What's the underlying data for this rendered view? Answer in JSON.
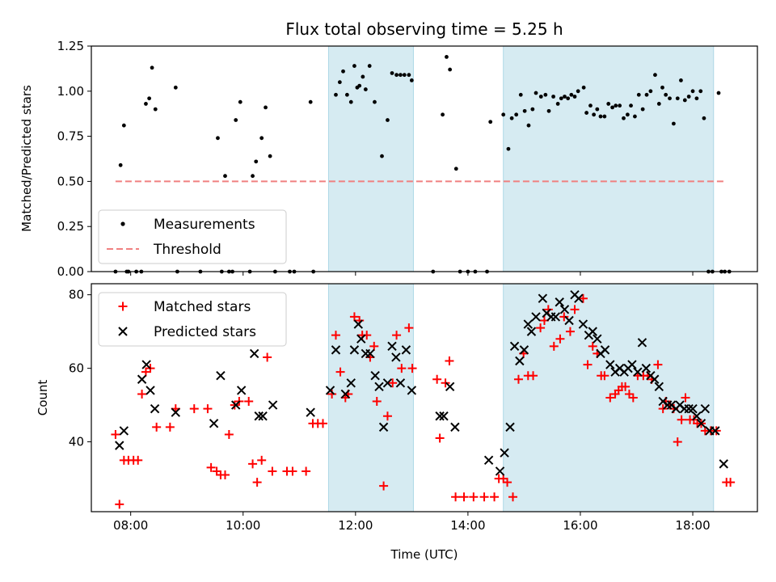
{
  "title": "Flux total observing time = 5.25 h",
  "xlabel": "Time (UTC)",
  "x_tick_labels": [
    "08:00",
    "10:00",
    "12:00",
    "14:00",
    "16:00",
    "18:00"
  ],
  "colors": {
    "measurements": "#000000",
    "threshold": "#f08080",
    "matched": "#ff0000",
    "predicted": "#000000",
    "shade": "#add8e6"
  },
  "chart_data": [
    {
      "type": "scatter",
      "ylabel": "Matched/Predicted stars",
      "xlim": [
        7.3,
        19.15
      ],
      "ylim": [
        0,
        1.25
      ],
      "y_ticks": [
        0.0,
        0.25,
        0.5,
        0.75,
        1.0,
        1.25
      ],
      "y_tick_labels": [
        "0.00",
        "0.25",
        "0.50",
        "0.75",
        "1.00",
        "1.25"
      ],
      "shaded_intervals": [
        [
          11.52,
          13.03
        ],
        [
          14.63,
          18.37
        ]
      ],
      "legend_location": "lower-left",
      "series": [
        {
          "name": "Measurements",
          "marker": "dot",
          "x": [
            7.73,
            7.82,
            7.88,
            7.93,
            7.96,
            8.1,
            8.19,
            8.27,
            8.33,
            8.38,
            8.44,
            8.8,
            8.83,
            9.24,
            9.55,
            9.62,
            9.68,
            9.75,
            9.81,
            9.87,
            9.95,
            10.12,
            10.17,
            10.23,
            10.33,
            10.4,
            10.48,
            10.57,
            10.83,
            10.91,
            11.2,
            11.25,
            11.65,
            11.72,
            11.78,
            11.85,
            11.92,
            11.98,
            12.03,
            12.07,
            12.13,
            12.18,
            12.25,
            12.34,
            12.47,
            12.57,
            12.65,
            12.73,
            12.8,
            12.87,
            12.95,
            13.0,
            13.38,
            13.55,
            13.62,
            13.68,
            13.79,
            13.86,
            14.0,
            14.13,
            14.34,
            14.4,
            14.63,
            14.72,
            14.78,
            14.86,
            14.94,
            15.01,
            15.08,
            15.15,
            15.21,
            15.3,
            15.38,
            15.44,
            15.52,
            15.6,
            15.66,
            15.72,
            15.78,
            15.84,
            15.9,
            15.96,
            16.06,
            16.11,
            16.18,
            16.24,
            16.3,
            16.36,
            16.43,
            16.5,
            16.57,
            16.63,
            16.7,
            16.77,
            16.84,
            16.9,
            16.97,
            17.04,
            17.11,
            17.18,
            17.25,
            17.33,
            17.4,
            17.46,
            17.52,
            17.59,
            17.66,
            17.73,
            17.79,
            17.86,
            17.93,
            18.0,
            18.07,
            18.14,
            18.2,
            18.28,
            18.35,
            18.46,
            18.51,
            18.57,
            18.65
          ],
          "y": [
            0.0,
            0.59,
            0.81,
            0.0,
            0.0,
            0.0,
            0.0,
            0.93,
            0.96,
            1.13,
            0.9,
            1.02,
            0.0,
            0.0,
            0.74,
            0.0,
            0.53,
            0.0,
            0.0,
            0.84,
            0.94,
            0.0,
            0.53,
            0.61,
            0.74,
            0.91,
            0.64,
            0.0,
            0.0,
            0.0,
            0.94,
            0.0,
            0.98,
            1.05,
            1.11,
            0.98,
            0.94,
            1.14,
            1.02,
            1.03,
            1.08,
            1.01,
            1.14,
            0.94,
            0.64,
            0.84,
            1.1,
            1.09,
            1.09,
            1.09,
            1.09,
            1.06,
            0.0,
            0.87,
            1.19,
            1.12,
            0.57,
            0.0,
            0.0,
            0.0,
            0.0,
            0.83,
            0.87,
            0.68,
            0.85,
            0.87,
            0.98,
            0.89,
            0.81,
            0.9,
            0.99,
            0.97,
            0.98,
            0.89,
            0.97,
            0.93,
            0.96,
            0.97,
            0.96,
            0.98,
            0.97,
            1.0,
            1.02,
            0.88,
            0.92,
            0.87,
            0.9,
            0.86,
            0.86,
            0.93,
            0.91,
            0.92,
            0.92,
            0.85,
            0.87,
            0.92,
            0.86,
            0.98,
            0.9,
            0.98,
            1.0,
            1.09,
            0.93,
            1.02,
            0.98,
            0.96,
            0.82,
            0.96,
            1.06,
            0.95,
            0.97,
            1.0,
            0.96,
            1.0,
            0.85,
            0.0,
            0.0,
            0.99,
            0.0,
            0.0,
            0.0
          ]
        },
        {
          "name": "Threshold",
          "style": "dashed",
          "x": [
            7.73,
            18.6
          ],
          "y": [
            0.5,
            0.5
          ]
        }
      ]
    },
    {
      "type": "scatter",
      "ylabel": "Count",
      "xlim": [
        7.3,
        19.15
      ],
      "ylim": [
        21,
        83
      ],
      "y_ticks": [
        40,
        60,
        80
      ],
      "y_tick_labels": [
        "40",
        "60",
        "80"
      ],
      "shaded_intervals": [
        [
          11.52,
          13.03
        ],
        [
          14.63,
          18.37
        ]
      ],
      "legend_location": "upper-left",
      "series": [
        {
          "name": "Matched stars",
          "marker": "plus",
          "x": [
            7.73,
            7.8,
            7.88,
            7.96,
            8.05,
            8.13,
            8.2,
            8.27,
            8.35,
            8.46,
            8.7,
            8.8,
            9.13,
            9.37,
            9.43,
            9.53,
            9.6,
            9.68,
            9.75,
            9.85,
            9.93,
            10.1,
            10.17,
            10.25,
            10.33,
            10.43,
            10.52,
            10.78,
            10.88,
            11.12,
            11.24,
            11.33,
            11.42,
            11.58,
            11.65,
            11.73,
            11.82,
            11.87,
            11.98,
            12.07,
            12.12,
            12.2,
            12.26,
            12.33,
            12.38,
            12.5,
            12.57,
            12.66,
            12.73,
            12.82,
            12.95,
            13.01,
            13.45,
            13.5,
            13.6,
            13.67,
            13.78,
            13.93,
            14.1,
            14.29,
            14.47,
            14.55,
            14.63,
            14.7,
            14.8,
            14.9,
            14.99,
            15.07,
            15.16,
            15.29,
            15.36,
            15.43,
            15.53,
            15.64,
            15.71,
            15.82,
            15.9,
            16.05,
            16.13,
            16.22,
            16.3,
            16.37,
            16.43,
            16.53,
            16.62,
            16.68,
            16.74,
            16.8,
            16.87,
            16.94,
            17.02,
            17.12,
            17.2,
            17.27,
            17.38,
            17.47,
            17.52,
            17.6,
            17.66,
            17.73,
            17.8,
            17.87,
            17.95,
            18.02,
            18.08,
            18.15,
            18.22,
            18.32,
            18.42,
            18.6,
            18.67
          ],
          "y": [
            42,
            23,
            35,
            35,
            35,
            35,
            53,
            59,
            60,
            44,
            44,
            49,
            49,
            49,
            33,
            32,
            31,
            31,
            42,
            50,
            51,
            51,
            34,
            29,
            35,
            63,
            32,
            32,
            32,
            32,
            45,
            45,
            45,
            53,
            69,
            59,
            52,
            53,
            74,
            73,
            69,
            69,
            63,
            66,
            51,
            28,
            47,
            56,
            69,
            60,
            71,
            60,
            57,
            41,
            56,
            62,
            25,
            25,
            25,
            25,
            25,
            30,
            30,
            29,
            25,
            57,
            64,
            58,
            58,
            71,
            73,
            76,
            66,
            68,
            74,
            70,
            76,
            79,
            61,
            66,
            64,
            58,
            58,
            52,
            53,
            54,
            55,
            55,
            53,
            52,
            58,
            58,
            58,
            57,
            61,
            49,
            51,
            50,
            49,
            40,
            46,
            52,
            46,
            46,
            45,
            45,
            43,
            43,
            43,
            29,
            29
          ]
        },
        {
          "name": "Predicted stars",
          "marker": "x",
          "x": [
            7.8,
            7.88,
            8.2,
            8.28,
            8.35,
            8.43,
            8.8,
            9.48,
            9.6,
            9.87,
            9.97,
            10.2,
            10.28,
            10.35,
            10.53,
            11.2,
            11.55,
            11.65,
            11.82,
            11.92,
            11.98,
            12.05,
            12.1,
            12.18,
            12.26,
            12.35,
            12.42,
            12.5,
            12.57,
            12.65,
            12.72,
            12.8,
            12.9,
            13.0,
            13.5,
            13.57,
            13.68,
            13.77,
            14.37,
            14.57,
            14.65,
            14.75,
            14.83,
            14.92,
            15.0,
            15.07,
            15.13,
            15.21,
            15.33,
            15.4,
            15.48,
            15.56,
            15.63,
            15.72,
            15.8,
            15.9,
            15.97,
            16.05,
            16.15,
            16.22,
            16.3,
            16.36,
            16.44,
            16.53,
            16.62,
            16.7,
            16.78,
            16.85,
            16.92,
            17.02,
            17.1,
            17.17,
            17.25,
            17.32,
            17.4,
            17.47,
            17.55,
            17.62,
            17.7,
            17.77,
            17.85,
            17.93,
            18.0,
            18.07,
            18.15,
            18.22,
            18.3,
            18.4,
            18.55
          ],
          "y": [
            39,
            43,
            57,
            61,
            54,
            49,
            48,
            45,
            58,
            50,
            54,
            64,
            47,
            47,
            50,
            48,
            54,
            65,
            53,
            56,
            65,
            72,
            68,
            64,
            64,
            58,
            55,
            44,
            56,
            66,
            63,
            56,
            65,
            54,
            47,
            47,
            55,
            44,
            35,
            32,
            37,
            44,
            66,
            62,
            65,
            72,
            70,
            74,
            79,
            75,
            74,
            74,
            78,
            76,
            73,
            80,
            79,
            72,
            69,
            70,
            68,
            64,
            65,
            61,
            59,
            60,
            59,
            60,
            61,
            59,
            67,
            60,
            58,
            57,
            55,
            51,
            50,
            50,
            49,
            50,
            49,
            49,
            49,
            47,
            45,
            49,
            43,
            43,
            34
          ]
        }
      ]
    }
  ]
}
